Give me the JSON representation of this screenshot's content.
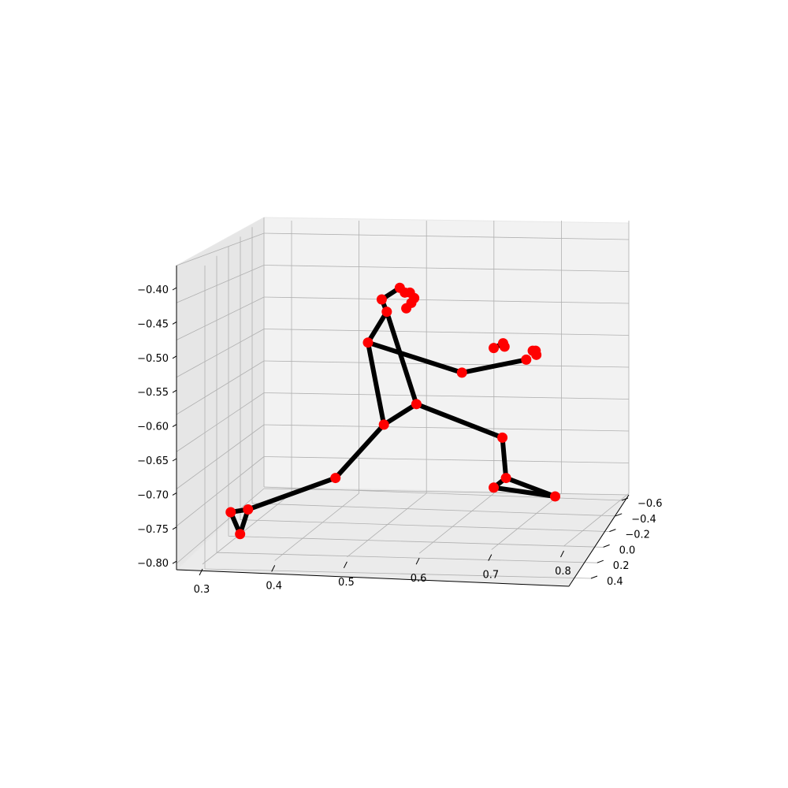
{
  "chart_data": {
    "type": "scatter",
    "title": "",
    "xlabel": "",
    "ylabel": "",
    "zlabel": "",
    "grid": true,
    "projection": "3d",
    "x_axis": {
      "ticks": [
        0.3,
        0.4,
        0.5,
        0.6,
        0.7,
        0.8
      ],
      "tick_labels": [
        "0.3",
        "0.4",
        "0.5",
        "0.6",
        "0.7",
        "0.8"
      ]
    },
    "y_axis": {
      "ticks": [
        -0.6,
        -0.4,
        -0.2,
        0.0,
        0.2,
        0.4
      ],
      "tick_labels": [
        "−0.6",
        "−0.4",
        "−0.2",
        "0.0",
        "0.2",
        "0.4"
      ]
    },
    "z_axis": {
      "ticks": [
        -0.4,
        -0.45,
        -0.5,
        -0.55,
        -0.6,
        -0.65,
        -0.7,
        -0.75,
        -0.8
      ],
      "tick_labels": [
        "−0.40",
        "−0.45",
        "−0.50",
        "−0.55",
        "−0.60",
        "−0.65",
        "−0.70",
        "−0.75",
        "−0.80"
      ]
    },
    "joint_color": "#ff0000",
    "bone_color": "#000000",
    "joints": [
      {
        "id": "hip-center",
        "x": 0.596,
        "y": 0.0,
        "z": -0.568
      },
      {
        "id": "thigh-left",
        "x": 0.551,
        "y": 0.0,
        "z": -0.598
      },
      {
        "id": "knee-left",
        "x": 0.484,
        "y": 0.0,
        "z": -0.676
      },
      {
        "id": "ankle-left",
        "x": 0.363,
        "y": 0.0,
        "z": -0.722
      },
      {
        "id": "heel-left",
        "x": 0.339,
        "y": 0.0,
        "z": -0.726
      },
      {
        "id": "toe-left",
        "x": 0.352,
        "y": 0.0,
        "z": -0.758
      },
      {
        "id": "knee-right",
        "x": 0.715,
        "y": 0.0,
        "z": -0.617
      },
      {
        "id": "ankle-right",
        "x": 0.72,
        "y": 0.0,
        "z": -0.676
      },
      {
        "id": "heel-right",
        "x": 0.703,
        "y": 0.0,
        "z": -0.69
      },
      {
        "id": "toe-right",
        "x": 0.788,
        "y": 0.0,
        "z": -0.703
      },
      {
        "id": "shoulder",
        "x": 0.529,
        "y": 0.0,
        "z": -0.478
      },
      {
        "id": "neck",
        "x": 0.555,
        "y": 0.0,
        "z": -0.433
      },
      {
        "id": "head-1",
        "x": 0.548,
        "y": 0.0,
        "z": -0.415
      },
      {
        "id": "head-2",
        "x": 0.573,
        "y": 0.0,
        "z": -0.398
      },
      {
        "id": "head-3",
        "x": 0.58,
        "y": 0.0,
        "z": -0.405
      },
      {
        "id": "head-4",
        "x": 0.587,
        "y": 0.0,
        "z": -0.405
      },
      {
        "id": "head-5",
        "x": 0.593,
        "y": 0.0,
        "z": -0.413
      },
      {
        "id": "head-6",
        "x": 0.589,
        "y": 0.0,
        "z": -0.42
      },
      {
        "id": "head-7",
        "x": 0.582,
        "y": 0.0,
        "z": -0.428
      },
      {
        "id": "elbow",
        "x": 0.659,
        "y": 0.0,
        "z": -0.522
      },
      {
        "id": "wrist",
        "x": 0.748,
        "y": 0.0,
        "z": -0.503
      },
      {
        "id": "finger-1",
        "x": 0.703,
        "y": 0.0,
        "z": -0.486
      },
      {
        "id": "finger-2",
        "x": 0.716,
        "y": 0.0,
        "z": -0.479
      },
      {
        "id": "finger-3",
        "x": 0.718,
        "y": 0.0,
        "z": -0.484
      },
      {
        "id": "finger-4",
        "x": 0.757,
        "y": 0.0,
        "z": -0.49
      },
      {
        "id": "finger-5",
        "x": 0.761,
        "y": 0.0,
        "z": -0.49
      },
      {
        "id": "finger-6",
        "x": 0.762,
        "y": 0.0,
        "z": -0.496
      }
    ],
    "bones": [
      [
        "hip-center",
        "thigh-left"
      ],
      [
        "thigh-left",
        "knee-left"
      ],
      [
        "knee-left",
        "ankle-left"
      ],
      [
        "ankle-left",
        "heel-left"
      ],
      [
        "heel-left",
        "toe-left"
      ],
      [
        "toe-left",
        "ankle-left"
      ],
      [
        "hip-center",
        "knee-right"
      ],
      [
        "knee-right",
        "ankle-right"
      ],
      [
        "ankle-right",
        "heel-right"
      ],
      [
        "heel-right",
        "toe-right"
      ],
      [
        "toe-right",
        "ankle-right"
      ],
      [
        "thigh-left",
        "shoulder"
      ],
      [
        "shoulder",
        "neck"
      ],
      [
        "neck",
        "hip-center"
      ],
      [
        "neck",
        "head-1"
      ],
      [
        "head-1",
        "head-2"
      ],
      [
        "shoulder",
        "elbow"
      ],
      [
        "elbow",
        "wrist"
      ],
      [
        "finger-1",
        "finger-2"
      ]
    ]
  }
}
